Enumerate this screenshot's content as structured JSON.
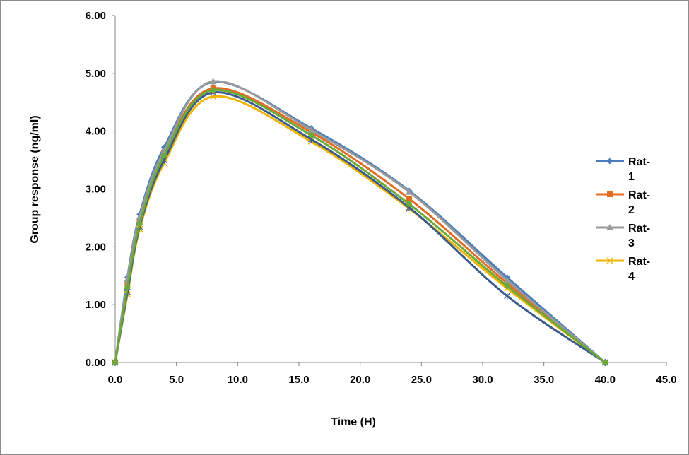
{
  "chart_data": {
    "type": "line",
    "title": "",
    "xlabel": "Time (H)",
    "ylabel": "Group response (ng/ml)",
    "xlim": [
      0,
      45
    ],
    "ylim": [
      0,
      6
    ],
    "x_ticks": [
      0,
      5,
      10,
      15,
      20,
      25,
      30,
      35,
      40,
      45
    ],
    "y_ticks": [
      0,
      1,
      2,
      3,
      4,
      5,
      6
    ],
    "x_tick_labels": [
      "0.0",
      "5.0",
      "10.0",
      "15.0",
      "20.0",
      "25.0",
      "30.0",
      "35.0",
      "40.0",
      "45.0"
    ],
    "y_tick_labels": [
      "0.00",
      "1.00",
      "2.00",
      "3.00",
      "4.00",
      "5.00",
      "6.00"
    ],
    "grid": false,
    "legend_position": "right",
    "smooth": true,
    "x": [
      0,
      1,
      2,
      4,
      8,
      16,
      24,
      32,
      40
    ],
    "series": [
      {
        "name": "Rat-1",
        "color": "#4a7ebb",
        "marker": "diamond",
        "values": [
          0,
          1.47,
          2.56,
          3.72,
          4.85,
          4.05,
          2.97,
          1.47,
          0
        ]
      },
      {
        "name": "Rat-2",
        "color": "#e36c25",
        "marker": "square",
        "values": [
          0,
          1.36,
          2.45,
          3.62,
          4.74,
          3.98,
          2.83,
          1.37,
          0
        ]
      },
      {
        "name": "Rat-3",
        "color": "#9a9a9a",
        "marker": "triangle",
        "values": [
          0,
          1.44,
          2.52,
          3.66,
          4.86,
          4.02,
          2.95,
          1.42,
          0
        ]
      },
      {
        "name": "Rat-4",
        "color": "#f0b400",
        "marker": "x",
        "values": [
          0,
          1.18,
          2.31,
          3.45,
          4.6,
          3.82,
          2.66,
          1.28,
          0
        ]
      },
      {
        "color": "#3b5a8c",
        "marker": "star",
        "values": [
          0,
          1.22,
          2.35,
          3.5,
          4.67,
          3.86,
          2.68,
          1.15,
          0
        ]
      },
      {
        "color": "#6aaa3a",
        "marker": "circle",
        "values": [
          0,
          1.3,
          2.4,
          3.58,
          4.71,
          3.93,
          2.74,
          1.32,
          0
        ]
      }
    ],
    "legend": {
      "entries": [
        {
          "line1": "Rat-",
          "line2": "1"
        },
        {
          "line1": "Rat-",
          "line2": "2"
        },
        {
          "line1": "Rat-",
          "line2": "3"
        },
        {
          "line1": "Rat-",
          "line2": "4"
        }
      ]
    }
  }
}
